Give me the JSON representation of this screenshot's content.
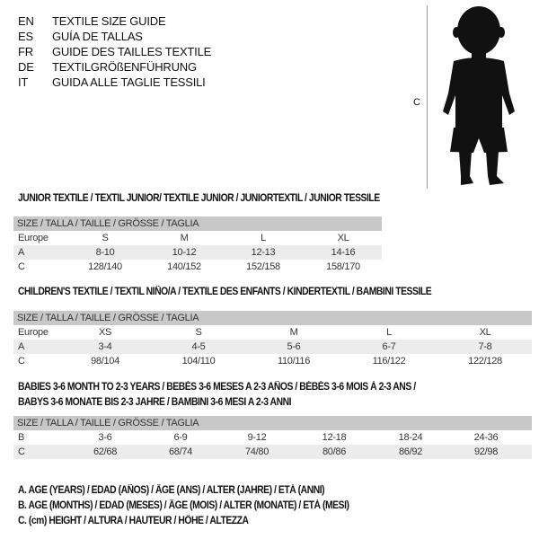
{
  "languages": [
    {
      "code": "EN",
      "title": "TEXTILE SIZE GUIDE"
    },
    {
      "code": "ES",
      "title": "GUÍA DE TALLAS"
    },
    {
      "code": "FR",
      "title": "GUIDE DES TAILLES TEXTILE"
    },
    {
      "code": "DE",
      "title": "TEXTILGRÖßENFÜHRUNG"
    },
    {
      "code": "IT",
      "title": "GUIDA ALLE TAGLIE TESSILI"
    }
  ],
  "figure": {
    "label": "C",
    "icon": "child-silhouette"
  },
  "junior": {
    "title": "JUNIOR TEXTILE / TEXTIL JUNIOR/ TEXTILE JUNIOR / JUNIORTEXTIL / JUNIOR TESSILE",
    "header": "SIZE / TALLA / TAILLE / GRÖSSE / TAGLIA",
    "rows": [
      {
        "label": "Europe",
        "cells": [
          "S",
          "M",
          "L",
          "XL"
        ]
      },
      {
        "label": "A",
        "cells": [
          "8-10",
          "10-12",
          "12-13",
          "14-16"
        ]
      },
      {
        "label": "C",
        "cells": [
          "128/140",
          "140/152",
          "152/158",
          "158/170"
        ]
      }
    ]
  },
  "children": {
    "title": "CHILDREN'S TEXTILE / TEXTIL NIÑO/A / TEXTILE DES ENFANTS / KINDERTEXTIL / BAMBINI TESSILE",
    "header": "SIZE / TALLA / TAILLE / GRÖSSE / TAGLIA",
    "rows": [
      {
        "label": "Europe",
        "cells": [
          "XS",
          "S",
          "M",
          "L",
          "XL"
        ]
      },
      {
        "label": "A",
        "cells": [
          "3-4",
          "4-5",
          "5-6",
          "6-7",
          "7-8"
        ]
      },
      {
        "label": "C",
        "cells": [
          "98/104",
          "104/110",
          "110/116",
          "116/122",
          "122/128"
        ]
      }
    ]
  },
  "babies": {
    "title_line1": "BABIES 3-6 MONTH TO 2-3 YEARS / BEBÉS 3-6 MESES A 2-3 AÑOS / BÉBÉS 3-6 MOIS À 2-3 ANS /",
    "title_line2": "BABYS 3-6 MONATE BIS 2-3 JAHRE / BAMBINI 3-6 MESI A 2-3 ANNI",
    "header": "SIZE / TALLA / TAILLE / GRÖSSE / TAGLIA",
    "rows": [
      {
        "label": "B",
        "cells": [
          "3-6",
          "6-9",
          "9-12",
          "12-18",
          "18-24",
          "24-36"
        ]
      },
      {
        "label": "C",
        "cells": [
          "62/68",
          "68/74",
          "74/80",
          "80/86",
          "86/92",
          "92/98"
        ]
      }
    ]
  },
  "legend": [
    "A. AGE (YEARS) / EDAD (AÑOS) / ÂGE (ANS) / ALTER (JAHRE) / ETÀ (ANNI)",
    "B. AGE (MONTHS) / EDAD (MESES) / ÂGE (MOIS) / ALTER (MONATE) / ETÀ (MESI)",
    "C. (cm) HEIGHT / ALTURA / HAUTEUR / HÖHE / ALTEZZA"
  ]
}
